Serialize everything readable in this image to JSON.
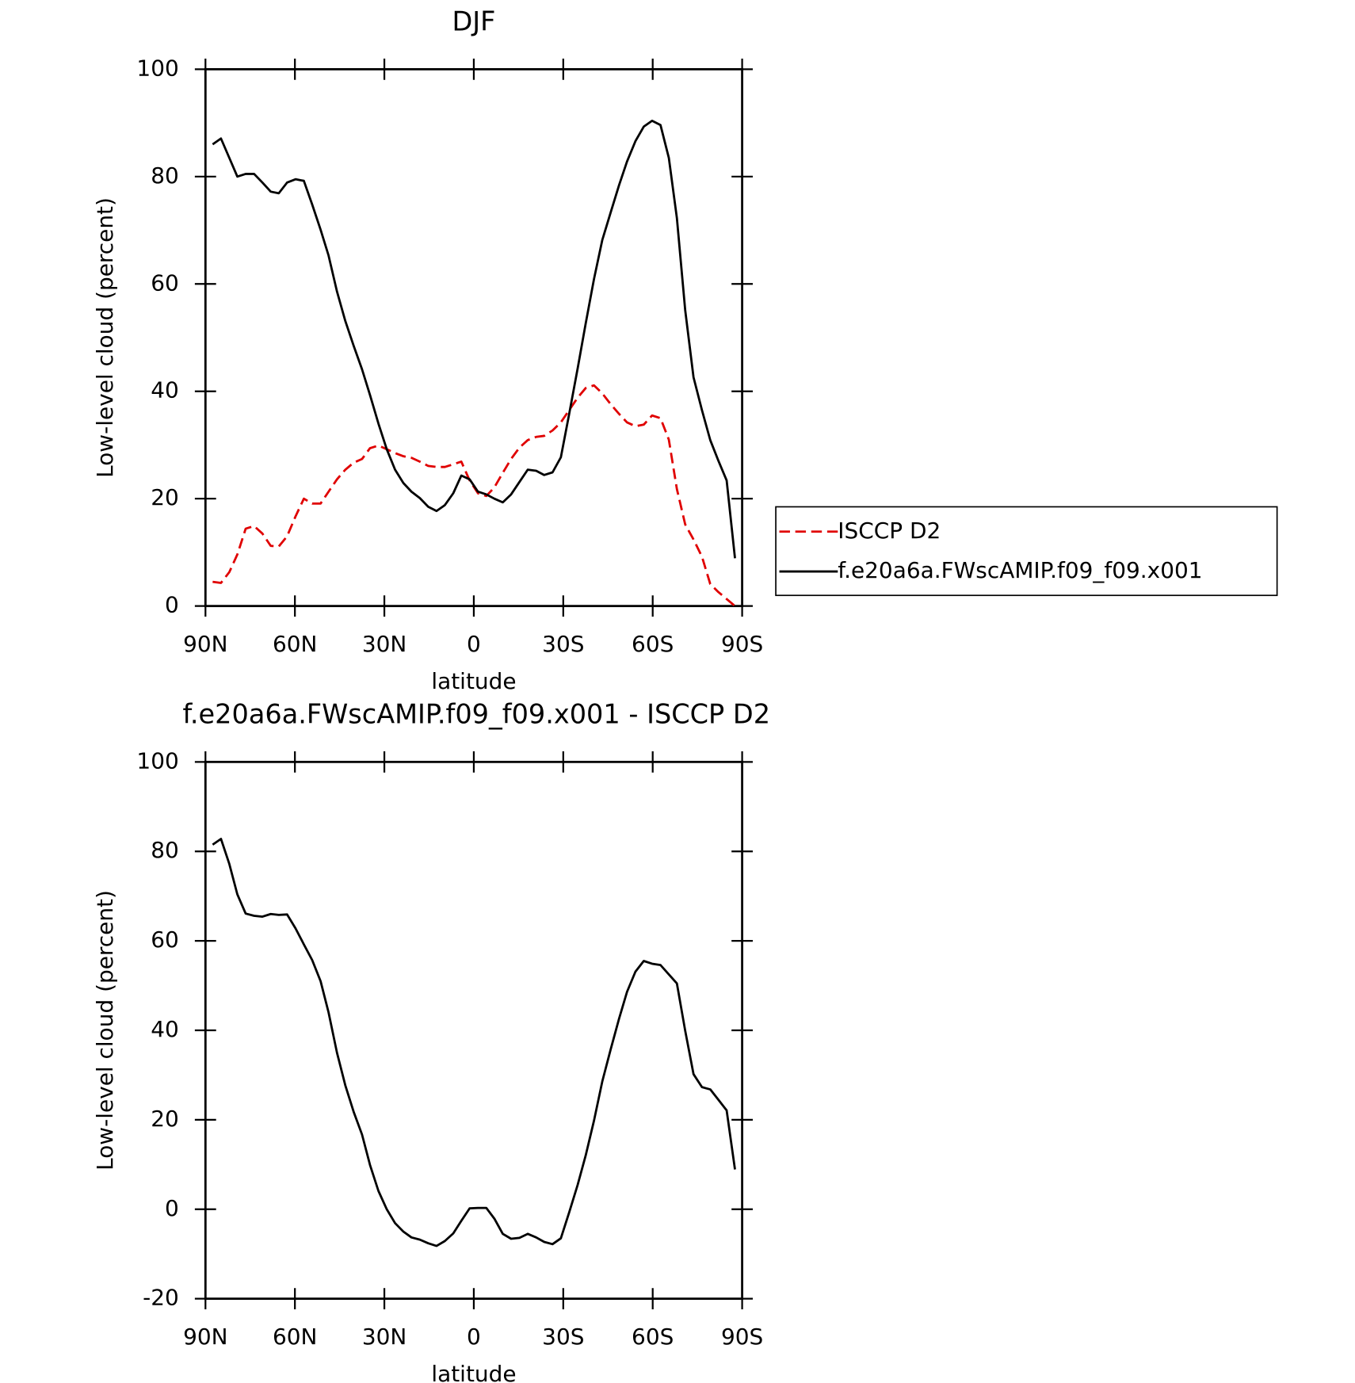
{
  "chart_data": [
    {
      "type": "line",
      "title": "DJF",
      "xlabel": "latitude",
      "ylabel": "Low-level cloud (percent)",
      "x": [
        87.6,
        84.8,
        82.0,
        79.3,
        76.5,
        73.7,
        70.9,
        68.1,
        65.4,
        62.6,
        59.8,
        57.0,
        54.2,
        51.4,
        48.7,
        45.9,
        43.1,
        40.3,
        37.5,
        34.8,
        32.0,
        29.2,
        26.4,
        23.6,
        20.9,
        18.1,
        15.3,
        12.5,
        9.7,
        6.9,
        4.2,
        1.4,
        -1.4,
        -4.2,
        -6.9,
        -9.7,
        -12.5,
        -15.3,
        -18.1,
        -20.9,
        -23.6,
        -26.4,
        -29.2,
        -32.0,
        -34.8,
        -37.5,
        -40.3,
        -43.1,
        -45.9,
        -48.7,
        -51.4,
        -54.2,
        -57.0,
        -59.8,
        -62.6,
        -65.4,
        -68.1,
        -70.9,
        -73.7,
        -76.5,
        -79.3,
        -82.0,
        -84.8,
        -87.6
      ],
      "series": [
        {
          "name": "ISCCP D2",
          "color": "#e00000",
          "style": "dashed",
          "values": [
            4.5,
            4.3,
            6.3,
            9.6,
            14.4,
            14.9,
            13.5,
            11.2,
            11.1,
            13.0,
            16.7,
            20.0,
            19.1,
            19.1,
            21.3,
            23.6,
            25.4,
            26.7,
            27.4,
            29.4,
            29.9,
            29.2,
            28.5,
            27.9,
            27.6,
            26.9,
            26.1,
            25.9,
            25.9,
            26.4,
            26.9,
            23.4,
            21.0,
            20.5,
            22.1,
            24.8,
            27.4,
            29.5,
            30.9,
            31.5,
            31.7,
            32.7,
            34.2,
            36.5,
            38.8,
            40.6,
            41.1,
            39.6,
            37.6,
            35.8,
            34.2,
            33.5,
            33.8,
            35.5,
            35.0,
            31.0,
            21.8,
            15.2,
            12.4,
            9.2,
            4.1,
            2.6,
            1.3,
            0.0
          ]
        },
        {
          "name": "f.e20a6a.FWscAMIP.f09_f09.x001",
          "color": "#000000",
          "style": "solid",
          "values": [
            86.0,
            87.1,
            83.5,
            80.0,
            80.5,
            80.5,
            78.9,
            77.2,
            76.9,
            78.9,
            79.5,
            79.2,
            74.8,
            70.1,
            65.3,
            58.6,
            53.1,
            48.5,
            44.1,
            39.3,
            34.0,
            29.2,
            25.4,
            22.9,
            21.3,
            20.1,
            18.5,
            17.7,
            18.8,
            21.0,
            24.3,
            23.6,
            21.3,
            20.8,
            20.0,
            19.3,
            20.8,
            23.1,
            25.4,
            25.2,
            24.4,
            24.9,
            27.7,
            35.8,
            44.2,
            52.6,
            60.9,
            68.2,
            73.3,
            78.4,
            82.8,
            86.6,
            89.3,
            90.4,
            89.6,
            83.5,
            72.3,
            55.1,
            42.6,
            36.5,
            30.9,
            27.1,
            23.4,
            8.9
          ]
        }
      ],
      "xlim": [
        90,
        -90
      ],
      "xticks": [
        {
          "value": 90,
          "label": "90N"
        },
        {
          "value": 60,
          "label": "60N"
        },
        {
          "value": 30,
          "label": "30N"
        },
        0,
        {
          "value": -30,
          "label": "30S"
        },
        {
          "value": -60,
          "label": "60S"
        },
        {
          "value": -90,
          "label": "90S"
        }
      ],
      "ylim": [
        0,
        100
      ],
      "yticks": [
        0,
        20,
        40,
        60,
        80,
        100
      ],
      "legend": "right"
    },
    {
      "type": "line",
      "title": "f.e20a6a.FWscAMIP.f09_f09.x001 - ISCCP D2",
      "xlabel": "latitude",
      "ylabel": "Low-level cloud (percent)",
      "x": [
        87.6,
        84.8,
        82.0,
        79.3,
        76.5,
        73.7,
        70.9,
        68.1,
        65.4,
        62.6,
        59.8,
        57.0,
        54.2,
        51.4,
        48.7,
        45.9,
        43.1,
        40.3,
        37.5,
        34.8,
        32.0,
        29.2,
        26.4,
        23.6,
        20.9,
        18.1,
        15.3,
        12.5,
        9.7,
        6.9,
        4.2,
        1.4,
        -1.4,
        -4.2,
        -6.9,
        -9.7,
        -12.5,
        -15.3,
        -18.1,
        -20.9,
        -23.6,
        -26.4,
        -29.2,
        -32.0,
        -34.8,
        -37.5,
        -40.3,
        -43.1,
        -45.9,
        -48.7,
        -51.4,
        -54.2,
        -57.0,
        -59.8,
        -62.6,
        -65.4,
        -68.1,
        -70.9,
        -73.7,
        -76.5,
        -79.3,
        -82.0,
        -84.8,
        -87.6
      ],
      "values": [
        81.5,
        82.8,
        77.2,
        70.4,
        66.1,
        65.6,
        65.4,
        66.0,
        65.8,
        65.9,
        62.8,
        59.2,
        55.7,
        51.0,
        44.0,
        35.0,
        27.7,
        21.8,
        16.7,
        9.9,
        4.1,
        0.0,
        -3.1,
        -5.0,
        -6.3,
        -6.8,
        -7.6,
        -8.2,
        -7.1,
        -5.4,
        -2.6,
        0.2,
        0.3,
        0.3,
        -2.1,
        -5.5,
        -6.6,
        -6.4,
        -5.5,
        -6.3,
        -7.3,
        -7.8,
        -6.5,
        -0.7,
        5.4,
        12.0,
        19.8,
        28.6,
        35.7,
        42.6,
        48.6,
        53.1,
        55.5,
        54.9,
        54.6,
        52.5,
        50.5,
        39.9,
        30.2,
        27.3,
        26.8,
        24.5,
        22.1,
        8.9
      ],
      "color": "#000000",
      "xlim": [
        90,
        -90
      ],
      "xticks": [
        {
          "value": 90,
          "label": "90N"
        },
        {
          "value": 60,
          "label": "60N"
        },
        {
          "value": 30,
          "label": "30N"
        },
        0,
        {
          "value": -30,
          "label": "30S"
        },
        {
          "value": -60,
          "label": "60S"
        },
        {
          "value": -90,
          "label": "90S"
        }
      ],
      "ylim": [
        -20,
        100
      ],
      "yticks": [
        -20,
        0,
        20,
        40,
        60,
        80,
        100
      ]
    }
  ]
}
